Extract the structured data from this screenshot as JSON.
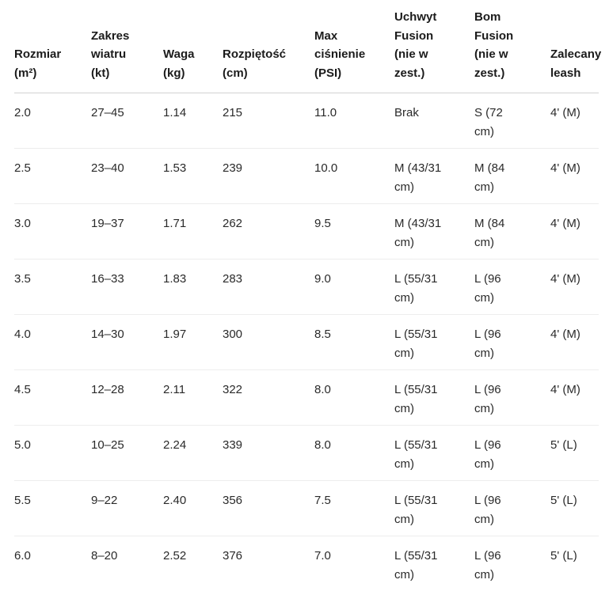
{
  "chart_data": {
    "type": "table",
    "columns": [
      "Rozmiar (m²)",
      "Zakres wiatru (kt)",
      "Waga (kg)",
      "Rozpiętość (cm)",
      "Max ciśnienie (PSI)",
      "Uchwyt Fusion (nie w zest.)",
      "Bom Fusion (nie w zest.)",
      "Zalecany leash"
    ],
    "rows": [
      [
        "2.0",
        "27–45",
        "1.14",
        "215",
        "11.0",
        "Brak",
        "S (72 cm)",
        "4' (M)"
      ],
      [
        "2.5",
        "23–40",
        "1.53",
        "239",
        "10.0",
        "M (43/31 cm)",
        "M (84 cm)",
        "4' (M)"
      ],
      [
        "3.0",
        "19–37",
        "1.71",
        "262",
        "9.5",
        "M (43/31 cm)",
        "M (84 cm)",
        "4' (M)"
      ],
      [
        "3.5",
        "16–33",
        "1.83",
        "283",
        "9.0",
        "L (55/31 cm)",
        "L (96 cm)",
        "4' (M)"
      ],
      [
        "4.0",
        "14–30",
        "1.97",
        "300",
        "8.5",
        "L (55/31 cm)",
        "L (96 cm)",
        "4' (M)"
      ],
      [
        "4.5",
        "12–28",
        "2.11",
        "322",
        "8.0",
        "L (55/31 cm)",
        "L (96 cm)",
        "4' (M)"
      ],
      [
        "5.0",
        "10–25",
        "2.24",
        "339",
        "8.0",
        "L (55/31 cm)",
        "L (96 cm)",
        "5' (L)"
      ],
      [
        "5.5",
        "9–22",
        "2.40",
        "356",
        "7.5",
        "L (55/31 cm)",
        "L (96 cm)",
        "5' (L)"
      ],
      [
        "6.0",
        "8–20",
        "2.52",
        "376",
        "7.0",
        "L (55/31 cm)",
        "L (96 cm)",
        "5' (L)"
      ]
    ]
  },
  "table": {
    "headers_display": [
      "Rozmiar\n(m²)",
      "Zakres\nwiatru\n(kt)",
      "Waga\n(kg)",
      "Rozpiętość\n(cm)",
      "Max\nciśnienie\n(PSI)",
      "Uchwyt\nFusion\n(nie w\nzest.)",
      "Bom\nFusion\n(nie w\nzest.)",
      "Zalecany\nleash"
    ],
    "rows_display": [
      [
        "2.0",
        "27–45",
        "1.14",
        "215",
        "11.0",
        "Brak",
        "S (72\ncm)",
        "4' (M)"
      ],
      [
        "2.5",
        "23–40",
        "1.53",
        "239",
        "10.0",
        "M (43/31\ncm)",
        "M (84\ncm)",
        "4' (M)"
      ],
      [
        "3.0",
        "19–37",
        "1.71",
        "262",
        "9.5",
        "M (43/31\ncm)",
        "M (84\ncm)",
        "4' (M)"
      ],
      [
        "3.5",
        "16–33",
        "1.83",
        "283",
        "9.0",
        "L (55/31\ncm)",
        "L (96\ncm)",
        "4' (M)"
      ],
      [
        "4.0",
        "14–30",
        "1.97",
        "300",
        "8.5",
        "L (55/31\ncm)",
        "L (96\ncm)",
        "4' (M)"
      ],
      [
        "4.5",
        "12–28",
        "2.11",
        "322",
        "8.0",
        "L (55/31\ncm)",
        "L (96\ncm)",
        "4' (M)"
      ],
      [
        "5.0",
        "10–25",
        "2.24",
        "339",
        "8.0",
        "L (55/31\ncm)",
        "L (96\ncm)",
        "5' (L)"
      ],
      [
        "5.5",
        "9–22",
        "2.40",
        "356",
        "7.5",
        "L (55/31\ncm)",
        "L (96\ncm)",
        "5' (L)"
      ],
      [
        "6.0",
        "8–20",
        "2.52",
        "376",
        "7.0",
        "L (55/31\ncm)",
        "L (96\ncm)",
        "5' (L)"
      ]
    ]
  },
  "colors": {
    "background": "#ffffff",
    "text": "#2a2a2a",
    "header_text": "#1b1b1b",
    "header_divider": "#d2d2d2",
    "row_divider": "#ededed"
  }
}
